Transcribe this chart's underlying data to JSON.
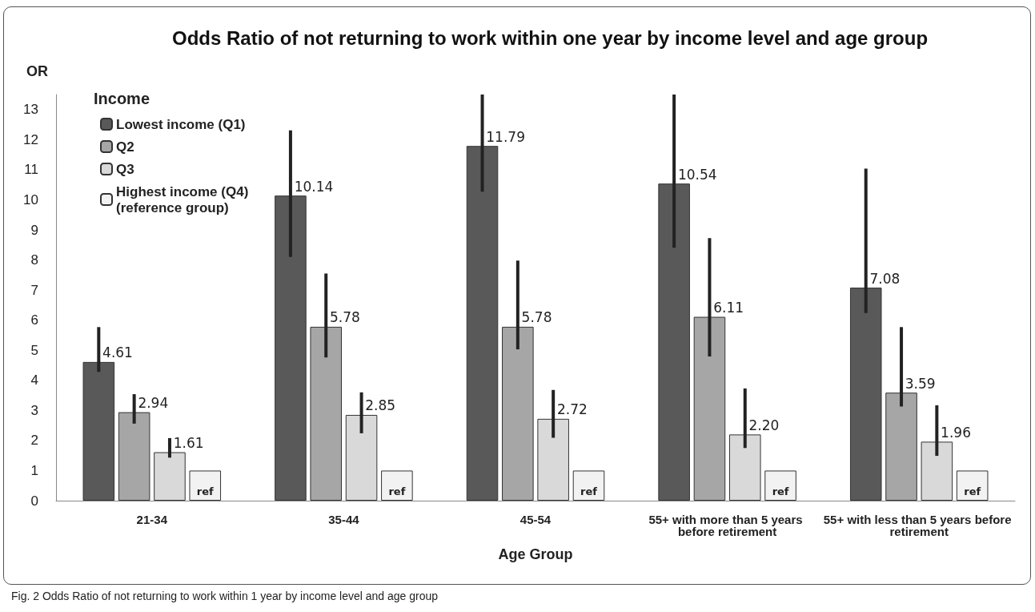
{
  "chart_data": {
    "type": "bar",
    "title": "Odds Ratio of not returning to work within one year by income level and age group",
    "xlabel": "Age Group",
    "ylabel": "OR",
    "legend_title": "Income",
    "legend": "top left",
    "grid": false,
    "categories": [
      "21-34",
      "35-44",
      "45-54",
      "55+ with more than 5 years before retirement",
      "55+ with less than 5 years before retirement"
    ],
    "ylim": [
      0,
      13.5
    ],
    "yticks": [
      0,
      1,
      2,
      3,
      4,
      5,
      6,
      7,
      8,
      9,
      10,
      11,
      12,
      13
    ],
    "series": [
      {
        "name": "Lowest income (Q1)",
        "color": "#595959",
        "values": [
          4.61,
          10.14,
          11.79,
          10.54,
          7.08
        ],
        "errors": [
          [
            4.28,
            5.77
          ],
          [
            8.1,
            12.31
          ],
          [
            10.27,
            13.5
          ],
          [
            8.41,
            13.5
          ],
          [
            6.24,
            11.04
          ]
        ],
        "value_labels": [
          "4.61",
          "10.14",
          "11.79",
          "10.54",
          "7.08"
        ]
      },
      {
        "name": "Q2",
        "color": "#a6a6a6",
        "values": [
          2.94,
          5.78,
          5.78,
          6.11,
          3.59
        ],
        "errors": [
          [
            2.56,
            3.54
          ],
          [
            4.76,
            7.55
          ],
          [
            5.03,
            7.98
          ],
          [
            4.79,
            8.73
          ],
          [
            3.13,
            5.77
          ]
        ],
        "value_labels": [
          "2.94",
          "5.78",
          "5.78",
          "6.11",
          "3.59"
        ]
      },
      {
        "name": "Q3",
        "color": "#d9d9d9",
        "values": [
          1.61,
          2.85,
          2.72,
          2.2,
          1.96
        ],
        "errors": [
          [
            1.43,
            2.08
          ],
          [
            2.24,
            3.6
          ],
          [
            2.09,
            3.68
          ],
          [
            1.75,
            3.73
          ],
          [
            1.49,
            3.17
          ]
        ],
        "value_labels": [
          "1.61",
          "2.85",
          "2.72",
          "2.20",
          "1.96"
        ]
      },
      {
        "name": "Highest income (Q4)\n(reference group)",
        "color": "#f2f2f2",
        "values": [
          1,
          1,
          1,
          1,
          1
        ],
        "value_labels": [
          "ref",
          "ref",
          "ref",
          "ref",
          "ref"
        ]
      }
    ],
    "annotations": [
      "Fig. 2 Odds Ratio of not returning to work within 1 year by income level and age group"
    ]
  }
}
